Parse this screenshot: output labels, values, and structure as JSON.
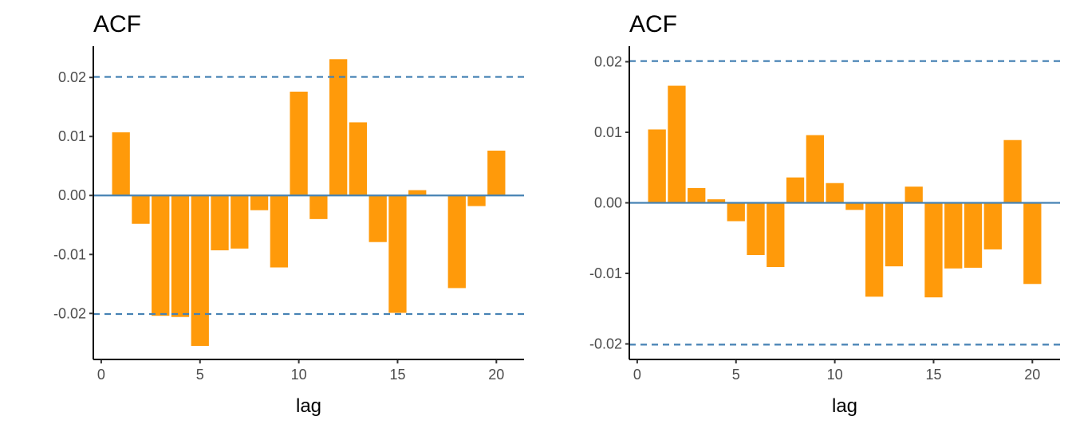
{
  "chart_data": [
    {
      "type": "bar",
      "title": "ACF",
      "xlabel": "lag",
      "ylabel": "",
      "x": [
        1,
        2,
        3,
        4,
        5,
        6,
        7,
        8,
        9,
        10,
        11,
        12,
        13,
        14,
        15,
        16,
        17,
        18,
        19,
        20
      ],
      "values": [
        0.0107,
        -0.0048,
        -0.0204,
        -0.0206,
        -0.0255,
        -0.0093,
        -0.009,
        -0.0025,
        -0.0122,
        0.0176,
        -0.004,
        0.0231,
        0.0124,
        -0.0079,
        -0.0199,
        0.0009,
        0.0,
        -0.0157,
        -0.0018,
        0.0076
      ],
      "ci": 0.0201,
      "xlim": [
        -0.4,
        21.4
      ],
      "ylim": [
        -0.0278,
        0.0253
      ],
      "xticks": [
        0,
        5,
        10,
        15,
        20
      ],
      "xtick_labels": [
        "0",
        "5",
        "10",
        "15",
        "20"
      ],
      "yticks": [
        -0.02,
        -0.01,
        0,
        0.01,
        0.02
      ],
      "ytick_labels": [
        "-0.02",
        "-0.01",
        "0.00",
        "0.01",
        "0.02"
      ],
      "colors": {
        "bar": "#FF9A0A",
        "line": "#4682B4"
      }
    },
    {
      "type": "bar",
      "title": "ACF",
      "xlabel": "lag",
      "ylabel": "",
      "x": [
        1,
        2,
        3,
        4,
        5,
        6,
        7,
        8,
        9,
        10,
        11,
        12,
        13,
        14,
        15,
        16,
        17,
        18,
        19,
        20
      ],
      "values": [
        0.0104,
        0.0166,
        0.0021,
        0.0005,
        -0.0026,
        -0.0074,
        -0.0091,
        0.0036,
        0.0096,
        0.0028,
        -0.001,
        -0.0133,
        -0.009,
        0.0023,
        -0.0134,
        -0.0093,
        -0.0092,
        -0.0066,
        0.0089,
        -0.0115
      ],
      "ci": 0.0201,
      "xlim": [
        -0.4,
        21.4
      ],
      "ylim": [
        -0.0222,
        0.0222
      ],
      "xticks": [
        0,
        5,
        10,
        15,
        20
      ],
      "xtick_labels": [
        "0",
        "5",
        "10",
        "15",
        "20"
      ],
      "yticks": [
        -0.02,
        -0.01,
        0,
        0.01,
        0.02
      ],
      "ytick_labels": [
        "-0.02",
        "-0.01",
        "0.00",
        "0.01",
        "0.02"
      ],
      "colors": {
        "bar": "#FF9A0A",
        "line": "#4682B4"
      }
    }
  ]
}
